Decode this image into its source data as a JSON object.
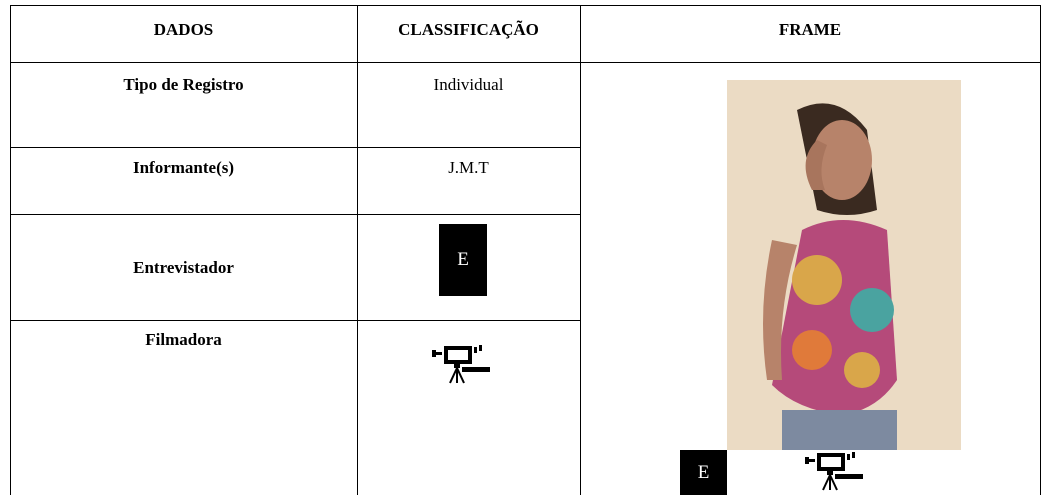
{
  "table": {
    "headers": [
      "DADOS",
      "CLASSIFICAÇÃO",
      "FRAME"
    ],
    "rows": [
      [
        "Tipo de Registro",
        "Individual"
      ],
      [
        "Informante(s)",
        "J.M.T"
      ],
      [
        "Entrevistador",
        "E"
      ],
      [
        "Filmadora"
      ]
    ],
    "frame_label": "E"
  }
}
